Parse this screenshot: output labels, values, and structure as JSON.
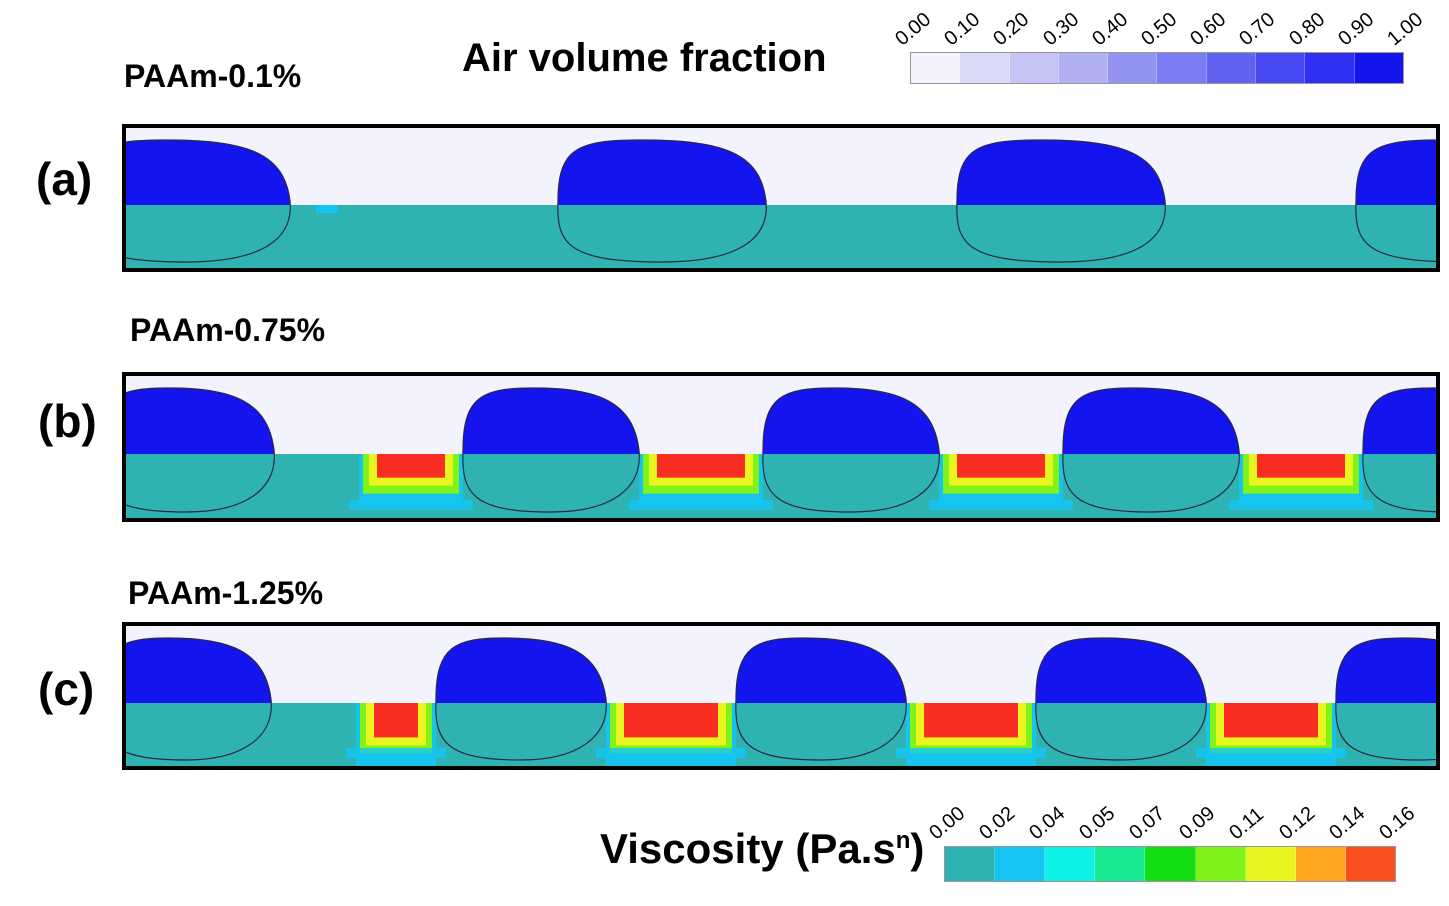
{
  "air_legend": {
    "title": "Air volume fraction",
    "ticks": [
      "0.00",
      "0.10",
      "0.20",
      "0.30",
      "0.40",
      "0.50",
      "0.60",
      "0.70",
      "0.80",
      "0.90",
      "1.00"
    ],
    "colors": [
      "#f3f3fd",
      "#dadaf8",
      "#c4c4f5",
      "#b0b0f3",
      "#9393f2",
      "#7b7bf3",
      "#6262f2",
      "#4949f2",
      "#3131f3",
      "#1414ee"
    ]
  },
  "viscosity_legend": {
    "title": "Viscosity (Pa.s",
    "title_sup": "n",
    "title_close": ")",
    "ticks": [
      "0.00",
      "0.02",
      "0.04",
      "0.05",
      "0.07",
      "0.09",
      "0.11",
      "0.12",
      "0.14",
      "0.16"
    ],
    "colors": [
      "#2fb3b2",
      "#14c5f3",
      "#0ff0e8",
      "#16e98f",
      "#14dd12",
      "#80f31b",
      "#e9f51e",
      "#ffa51f",
      "#fa4e1c"
    ]
  },
  "panels": [
    {
      "letter": "(a)",
      "label": "PAAm-0.1%",
      "bubbles": [
        0.5,
        1.82,
        3.15,
        4.48
      ],
      "wake_high": 0.0
    },
    {
      "letter": "(b)",
      "label": "PAAm-0.75%",
      "bubbles": [
        0.5,
        1.45,
        2.45,
        3.45,
        4.45
      ],
      "wake_high": 0.6
    },
    {
      "letter": "(c)",
      "label": "PAAm-1.25%",
      "bubbles": [
        0.5,
        1.35,
        2.35,
        3.35,
        4.35
      ],
      "wake_high": 1.0
    }
  ],
  "colors": {
    "air_blue": "#1414ee",
    "background": "#f3f3fd",
    "liquid": "#2fb3b2",
    "high_visc": "#fa2d22"
  }
}
